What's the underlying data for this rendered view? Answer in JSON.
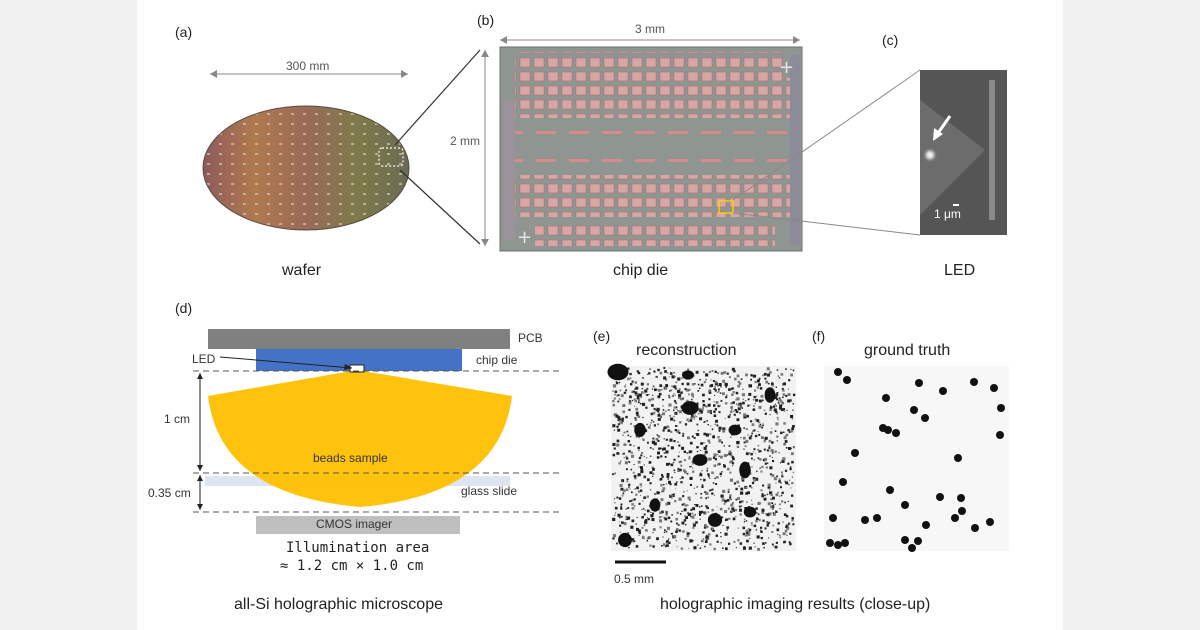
{
  "figure": {
    "wafer": {
      "label": "(a)",
      "dimension": "300 mm",
      "caption": "wafer"
    },
    "chip": {
      "label": "(b)",
      "width_dim": "3 mm",
      "height_dim": "2 mm",
      "caption": "chip die"
    },
    "led": {
      "label": "(c)",
      "scale": "1 μm",
      "caption": "LED"
    },
    "microscope": {
      "label": "(d)",
      "pcb": "PCB",
      "chip_die": "chip die",
      "led": "LED",
      "distance_1": "1 cm",
      "distance_2": "0.35 cm",
      "beads": "beads sample",
      "glass": "glass slide",
      "cmos": "CMOS imager",
      "illum_line1": "Illumination area",
      "illum_line2": "≈ 1.2 cm × 1.0 cm",
      "caption": "all-Si holographic microscope"
    },
    "reconstruction": {
      "label": "(e)",
      "title": "reconstruction",
      "scale": "0.5 mm"
    },
    "ground_truth": {
      "label": "(f)",
      "title": "ground truth"
    },
    "results_caption": "holographic imaging results (close-up)"
  },
  "colors": {
    "pcb": "#808080",
    "chip_die": "#4472c4",
    "illumination": "#ffc000",
    "glass": "#dde6f0",
    "cmos": "#bfbfbf"
  }
}
